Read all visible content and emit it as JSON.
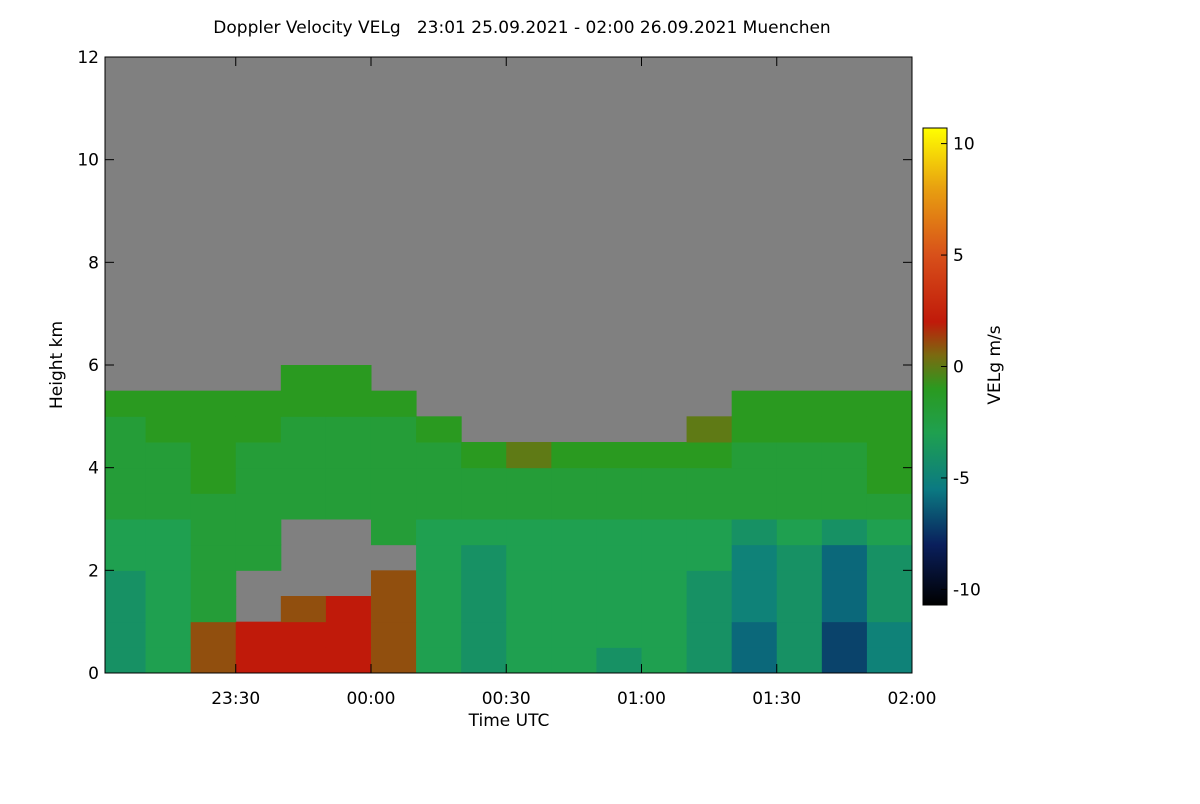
{
  "chart_data": {
    "type": "heatmap",
    "title": "Doppler Velocity VELg   23:01 25.09.2021 - 02:00 26.09.2021 Muenchen",
    "x_label": "Time UTC",
    "y_label": "Height km",
    "colorbar_label": "VELg m/s",
    "x_edges": [
      -59,
      -50,
      -40,
      -30,
      -20,
      -10,
      0,
      10,
      20,
      30,
      40,
      50,
      60,
      70,
      80,
      90,
      100,
      110,
      120
    ],
    "y_edges": [
      0,
      0.5,
      1,
      1.5,
      2,
      2.5,
      3,
      3.5,
      4,
      4.5,
      5,
      5.5,
      6
    ],
    "z": [
      [
        -4,
        -3,
        1,
        2,
        2,
        2,
        1,
        -3,
        -4,
        -3,
        -3,
        -4,
        -3,
        -4,
        -6,
        -4,
        -7,
        -5
      ],
      [
        -4,
        -3,
        1,
        2,
        2,
        2,
        1,
        -3,
        -4,
        -3,
        -3,
        -3,
        -3,
        -4,
        -6,
        -4,
        -7,
        -5
      ],
      [
        -4,
        -3,
        -2,
        null,
        1,
        2,
        1,
        -3,
        -4,
        -3,
        -3,
        -3,
        -3,
        -4,
        -5,
        -4,
        -6,
        -4
      ],
      [
        -4,
        -3,
        -2,
        null,
        null,
        null,
        1,
        -3,
        -4,
        -3,
        -3,
        -3,
        -3,
        -4,
        -5,
        -4,
        -6,
        -4
      ],
      [
        -3,
        -3,
        -2,
        -2,
        null,
        null,
        null,
        -3,
        -4,
        -3,
        -3,
        -3,
        -3,
        -3,
        -5,
        -4,
        -6,
        -4
      ],
      [
        -3,
        -3,
        -2,
        -2,
        null,
        null,
        -2,
        -3,
        -3,
        -3,
        -3,
        -3,
        -3,
        -3,
        -4,
        -3,
        -4,
        -3
      ],
      [
        -2,
        -2,
        -2,
        -2,
        -2,
        -2,
        -2,
        -2,
        -2,
        -2,
        -2,
        -2,
        -2,
        -2,
        -2,
        -2,
        -2,
        -2
      ],
      [
        -2,
        -2,
        -1,
        -2,
        -2,
        -2,
        -2,
        -2,
        -2,
        -2,
        -2,
        -2,
        -2,
        -2,
        -2,
        -2,
        -2,
        -1
      ],
      [
        -2,
        -2,
        -1,
        -2,
        -2,
        -2,
        -2,
        -2,
        -1,
        0,
        -1,
        -1,
        -1,
        -1,
        -2,
        -2,
        -2,
        -1
      ],
      [
        -2,
        -1,
        -1,
        -1,
        -2,
        -2,
        -2,
        -1,
        null,
        null,
        null,
        null,
        null,
        0,
        -1,
        -1,
        -1,
        -1
      ],
      [
        -1,
        -1,
        -1,
        -1,
        -1,
        -1,
        -1,
        null,
        null,
        null,
        null,
        null,
        null,
        null,
        -1,
        -1,
        -1,
        -1
      ],
      [
        null,
        null,
        null,
        null,
        -1,
        -1,
        null,
        null,
        null,
        null,
        null,
        null,
        null,
        null,
        null,
        null,
        null,
        null
      ]
    ],
    "xlim": [
      -59,
      120
    ],
    "xticks": [
      {
        "value": -30,
        "label": "23:30"
      },
      {
        "value": 0,
        "label": "00:00"
      },
      {
        "value": 30,
        "label": "00:30"
      },
      {
        "value": 60,
        "label": "01:00"
      },
      {
        "value": 90,
        "label": "01:30"
      },
      {
        "value": 120,
        "label": "02:00"
      }
    ],
    "ylim": [
      0,
      12
    ],
    "yticks": [
      0,
      2,
      4,
      6,
      8,
      10,
      12
    ],
    "zlim": [
      -10.7,
      10.7
    ],
    "zticks": [
      -10,
      -5,
      0,
      5,
      10
    ],
    "null_color": "#808080",
    "colorscale": [
      [
        -10.7,
        "#000000"
      ],
      [
        -8,
        "#0a1f5c"
      ],
      [
        -5.5,
        "#0b7a82"
      ],
      [
        -3,
        "#1fa050"
      ],
      [
        -1,
        "#2a9a20"
      ],
      [
        0.5,
        "#7a6a10"
      ],
      [
        2,
        "#c01a0a"
      ],
      [
        5,
        "#d8501a"
      ],
      [
        8,
        "#e8a010"
      ],
      [
        10.7,
        "#ffff00"
      ]
    ]
  }
}
